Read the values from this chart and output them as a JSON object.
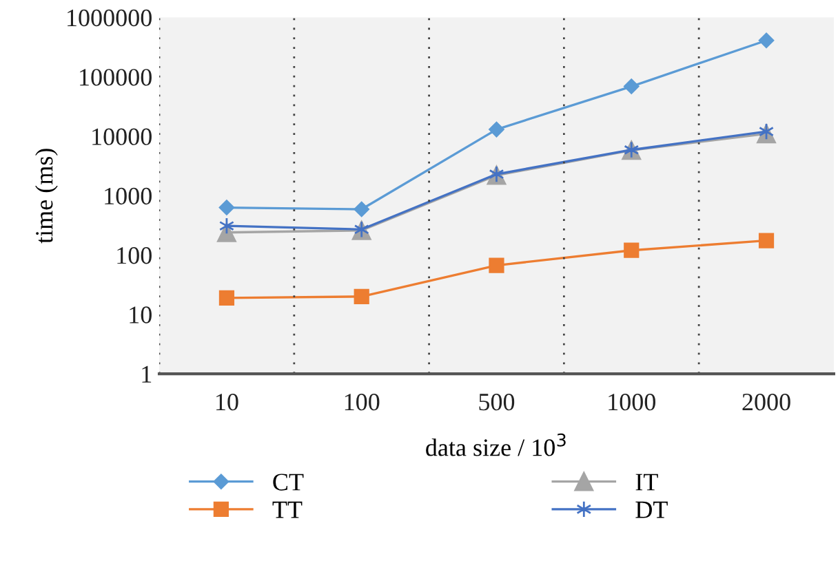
{
  "chart_data": {
    "type": "line",
    "xlabel": "data size / 10$^{3}$",
    "ylabel": "time (ms)",
    "categories": [
      "10",
      "100",
      "500",
      "1000",
      "2000"
    ],
    "series": [
      {
        "name": "CT",
        "color": "#5b9bd5",
        "marker": "diamond",
        "values": [
          630,
          590,
          13000,
          69000,
          410000
        ]
      },
      {
        "name": "TT",
        "color": "#ed7d31",
        "marker": "square",
        "values": [
          19,
          20,
          67,
          120,
          175
        ]
      },
      {
        "name": "IT",
        "color": "#a5a5a5",
        "marker": "triangle",
        "values": [
          240,
          260,
          2200,
          5800,
          11000
        ]
      },
      {
        "name": "DT",
        "color": "#4472c4",
        "marker": "cross",
        "values": [
          310,
          270,
          2300,
          5900,
          12000
        ]
      }
    ],
    "log": "y",
    "ylim": [
      1,
      1000000
    ],
    "yticks": [
      1,
      10,
      100,
      1000,
      10000,
      100000,
      1000000
    ],
    "grid": "x",
    "legend": "bottom",
    "line_style": "solid"
  }
}
